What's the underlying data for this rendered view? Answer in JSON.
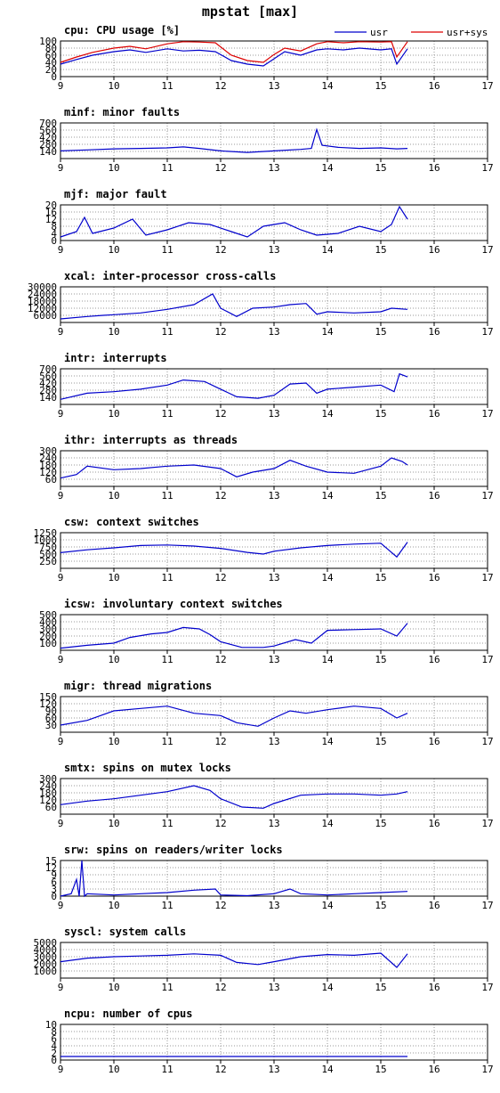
{
  "title": "mpstat [max]",
  "colors": {
    "usr": "#0000cc",
    "sys": "#dd0000",
    "grid": "#999999"
  },
  "chart_data": [
    {
      "type": "line",
      "title": "cpu: CPU usage [%]",
      "ylim": [
        0,
        100
      ],
      "yticks": [
        0,
        20,
        40,
        60,
        80,
        100
      ],
      "xticks": [
        9,
        10,
        11,
        12,
        13,
        14,
        15,
        16,
        17
      ],
      "legend": [
        "usr",
        "usr+sys"
      ],
      "series": [
        {
          "name": "usr",
          "color": "#0000cc",
          "x": [
            9,
            9.3,
            9.6,
            10,
            10.3,
            10.6,
            11,
            11.3,
            11.6,
            11.9,
            12.2,
            12.5,
            12.8,
            13,
            13.2,
            13.5,
            13.8,
            14,
            14.3,
            14.6,
            15,
            15.2,
            15.3,
            15.5
          ],
          "y": [
            35,
            48,
            60,
            70,
            75,
            68,
            78,
            72,
            74,
            70,
            45,
            35,
            30,
            50,
            70,
            60,
            75,
            78,
            75,
            80,
            75,
            78,
            35,
            78
          ]
        },
        {
          "name": "usr+sys",
          "color": "#dd0000",
          "x": [
            9,
            9.3,
            9.6,
            10,
            10.3,
            10.6,
            11,
            11.3,
            11.6,
            11.9,
            12.2,
            12.5,
            12.8,
            13,
            13.2,
            13.5,
            13.8,
            14,
            14.3,
            14.6,
            15,
            15.2,
            15.3,
            15.5
          ],
          "y": [
            40,
            55,
            68,
            80,
            85,
            78,
            92,
            98,
            97,
            95,
            60,
            45,
            40,
            62,
            80,
            72,
            92,
            98,
            95,
            98,
            97,
            98,
            55,
            98
          ]
        }
      ]
    },
    {
      "type": "line",
      "title": "minf: minor faults",
      "ylim": [
        0,
        700
      ],
      "yticks": [
        140,
        280,
        420,
        560,
        700
      ],
      "xticks": [
        9,
        10,
        11,
        12,
        13,
        14,
        15,
        16,
        17
      ],
      "series": [
        {
          "name": "",
          "color": "#0000cc",
          "x": [
            9,
            9.5,
            10,
            10.5,
            11,
            11.3,
            11.6,
            12,
            12.5,
            13,
            13.5,
            13.7,
            13.8,
            13.9,
            14.2,
            14.6,
            15,
            15.3,
            15.5
          ],
          "y": [
            150,
            170,
            190,
            200,
            210,
            230,
            200,
            150,
            120,
            150,
            180,
            200,
            570,
            260,
            220,
            200,
            210,
            190,
            200
          ]
        }
      ]
    },
    {
      "type": "line",
      "title": "mjf: major fault",
      "ylim": [
        0,
        20
      ],
      "yticks": [
        0,
        4,
        8,
        12,
        16,
        20
      ],
      "xticks": [
        9,
        10,
        11,
        12,
        13,
        14,
        15,
        16,
        17
      ],
      "series": [
        {
          "name": "",
          "color": "#0000cc",
          "x": [
            9,
            9.3,
            9.45,
            9.6,
            10,
            10.35,
            10.6,
            11,
            11.4,
            11.8,
            12.2,
            12.5,
            12.8,
            13.2,
            13.5,
            13.8,
            14.2,
            14.6,
            15,
            15.2,
            15.35,
            15.5
          ],
          "y": [
            2,
            5,
            13,
            4,
            7,
            12,
            3,
            6,
            10,
            9,
            5,
            2,
            8,
            10,
            6,
            3,
            4,
            8,
            5,
            9,
            19,
            12
          ]
        }
      ]
    },
    {
      "type": "line",
      "title": "xcal: inter-processor cross-calls",
      "ylim": [
        0,
        30000
      ],
      "yticks": [
        6000,
        12000,
        18000,
        24000,
        30000
      ],
      "xticks": [
        9,
        10,
        11,
        12,
        13,
        14,
        15,
        16,
        17
      ],
      "series": [
        {
          "name": "",
          "color": "#0000cc",
          "x": [
            9,
            9.5,
            9.8,
            10,
            10.5,
            11,
            11.5,
            11.85,
            12,
            12.3,
            12.6,
            13,
            13.3,
            13.6,
            13.8,
            14,
            14.5,
            15,
            15.2,
            15.5
          ],
          "y": [
            3000,
            5000,
            6000,
            6500,
            8000,
            11000,
            15000,
            24000,
            12000,
            5000,
            12000,
            13000,
            15000,
            16000,
            7000,
            9000,
            8000,
            9000,
            12000,
            11000
          ]
        }
      ]
    },
    {
      "type": "line",
      "title": "intr: interrupts",
      "ylim": [
        0,
        700
      ],
      "yticks": [
        140,
        280,
        420,
        560,
        700
      ],
      "xticks": [
        9,
        10,
        11,
        12,
        13,
        14,
        15,
        16,
        17
      ],
      "series": [
        {
          "name": "",
          "color": "#0000cc",
          "x": [
            9,
            9.5,
            10,
            10.5,
            11,
            11.3,
            11.7,
            12,
            12.3,
            12.7,
            13,
            13.3,
            13.6,
            13.8,
            14,
            14.5,
            15,
            15.25,
            15.35,
            15.5
          ],
          "y": [
            100,
            220,
            250,
            300,
            380,
            480,
            450,
            300,
            150,
            120,
            180,
            400,
            420,
            220,
            300,
            340,
            380,
            250,
            600,
            540
          ]
        }
      ]
    },
    {
      "type": "line",
      "title": "ithr: interrupts as threads",
      "ylim": [
        0,
        300
      ],
      "yticks": [
        60,
        120,
        180,
        240,
        300
      ],
      "xticks": [
        9,
        10,
        11,
        12,
        13,
        14,
        15,
        16,
        17
      ],
      "series": [
        {
          "name": "",
          "color": "#0000cc",
          "x": [
            9,
            9.3,
            9.5,
            10,
            10.5,
            11,
            11.5,
            12,
            12.3,
            12.6,
            13,
            13.3,
            13.6,
            14,
            14.5,
            15,
            15.2,
            15.4,
            15.5
          ],
          "y": [
            70,
            100,
            170,
            140,
            150,
            170,
            180,
            150,
            80,
            120,
            150,
            220,
            170,
            120,
            110,
            170,
            240,
            210,
            180
          ]
        }
      ]
    },
    {
      "type": "line",
      "title": "csw: context switches",
      "ylim": [
        0,
        1250
      ],
      "yticks": [
        250,
        500,
        750,
        1000,
        1250
      ],
      "xticks": [
        9,
        10,
        11,
        12,
        13,
        14,
        15,
        16,
        17
      ],
      "series": [
        {
          "name": "",
          "color": "#0000cc",
          "x": [
            9,
            9.5,
            10,
            10.5,
            11,
            11.5,
            12,
            12.5,
            12.8,
            13,
            13.5,
            14,
            14.5,
            15,
            15.3,
            15.5
          ],
          "y": [
            550,
            650,
            720,
            800,
            820,
            780,
            700,
            560,
            500,
            600,
            720,
            800,
            850,
            880,
            400,
            920
          ]
        }
      ]
    },
    {
      "type": "line",
      "title": "icsw: involuntary context switches",
      "ylim": [
        0,
        500
      ],
      "yticks": [
        100,
        200,
        300,
        400,
        500
      ],
      "xticks": [
        9,
        10,
        11,
        12,
        13,
        14,
        15,
        16,
        17
      ],
      "series": [
        {
          "name": "",
          "color": "#0000cc",
          "x": [
            9,
            9.5,
            10,
            10.3,
            10.7,
            11,
            11.3,
            11.6,
            11.8,
            12,
            12.4,
            12.8,
            13,
            13.4,
            13.7,
            14,
            14.5,
            15,
            15.3,
            15.5
          ],
          "y": [
            30,
            70,
            100,
            180,
            230,
            250,
            320,
            300,
            220,
            120,
            40,
            40,
            60,
            150,
            100,
            280,
            290,
            300,
            200,
            380
          ]
        }
      ]
    },
    {
      "type": "line",
      "title": "migr: thread migrations",
      "ylim": [
        0,
        150
      ],
      "yticks": [
        30,
        60,
        90,
        120,
        150
      ],
      "xticks": [
        9,
        10,
        11,
        12,
        13,
        14,
        15,
        16,
        17
      ],
      "series": [
        {
          "name": "",
          "color": "#0000cc",
          "x": [
            9,
            9.5,
            10,
            10.5,
            11,
            11.5,
            12,
            12.3,
            12.7,
            13,
            13.3,
            13.6,
            14,
            14.5,
            15,
            15.3,
            15.5
          ],
          "y": [
            30,
            50,
            90,
            100,
            110,
            80,
            70,
            40,
            25,
            60,
            90,
            80,
            95,
            110,
            100,
            60,
            80
          ]
        }
      ]
    },
    {
      "type": "line",
      "title": "smtx: spins on mutex locks",
      "ylim": [
        0,
        300
      ],
      "yticks": [
        60,
        120,
        180,
        240,
        300
      ],
      "xticks": [
        9,
        10,
        11,
        12,
        13,
        14,
        15,
        16,
        17
      ],
      "series": [
        {
          "name": "",
          "color": "#0000cc",
          "x": [
            9,
            9.5,
            10,
            10.5,
            11,
            11.5,
            11.8,
            12,
            12.4,
            12.8,
            13,
            13.5,
            14,
            14.5,
            15,
            15.3,
            15.5
          ],
          "y": [
            80,
            110,
            130,
            160,
            190,
            240,
            200,
            130,
            60,
            50,
            90,
            160,
            170,
            170,
            160,
            170,
            190
          ]
        }
      ]
    },
    {
      "type": "line",
      "title": "srw: spins on readers/writer locks",
      "ylim": [
        0,
        15
      ],
      "yticks": [
        0,
        3,
        6,
        9,
        12,
        15
      ],
      "xticks": [
        9,
        10,
        11,
        12,
        13,
        14,
        15,
        16,
        17
      ],
      "series": [
        {
          "name": "",
          "color": "#0000cc",
          "x": [
            9,
            9.2,
            9.3,
            9.35,
            9.4,
            9.45,
            9.5,
            10,
            10.5,
            11,
            11.5,
            11.9,
            12,
            12.5,
            13,
            13.3,
            13.5,
            14,
            14.5,
            15,
            15.5
          ],
          "y": [
            0,
            1,
            7,
            0,
            15,
            0,
            1,
            0.5,
            1,
            1.5,
            2.5,
            3,
            0.5,
            0.2,
            1,
            3,
            1,
            0.5,
            1,
            1.5,
            2
          ]
        }
      ]
    },
    {
      "type": "line",
      "title": "syscl: system calls",
      "ylim": [
        0,
        5000
      ],
      "yticks": [
        1000,
        2000,
        3000,
        4000,
        5000
      ],
      "xticks": [
        9,
        10,
        11,
        12,
        13,
        14,
        15,
        16,
        17
      ],
      "series": [
        {
          "name": "",
          "color": "#0000cc",
          "x": [
            9,
            9.5,
            10,
            10.5,
            11,
            11.5,
            12,
            12.3,
            12.7,
            13,
            13.5,
            14,
            14.5,
            15,
            15.3,
            15.5
          ],
          "y": [
            2300,
            2800,
            3000,
            3100,
            3200,
            3400,
            3200,
            2200,
            1900,
            2300,
            3000,
            3300,
            3200,
            3500,
            1500,
            3400
          ]
        }
      ]
    },
    {
      "type": "line",
      "title": "ncpu: number of cpus",
      "ylim": [
        0,
        10
      ],
      "yticks": [
        0,
        2,
        4,
        6,
        8,
        10
      ],
      "xticks": [
        9,
        10,
        11,
        12,
        13,
        14,
        15,
        16,
        17
      ],
      "series": [
        {
          "name": "",
          "color": "#0000cc",
          "x": [
            9,
            15.5
          ],
          "y": [
            1,
            1
          ]
        }
      ]
    }
  ]
}
